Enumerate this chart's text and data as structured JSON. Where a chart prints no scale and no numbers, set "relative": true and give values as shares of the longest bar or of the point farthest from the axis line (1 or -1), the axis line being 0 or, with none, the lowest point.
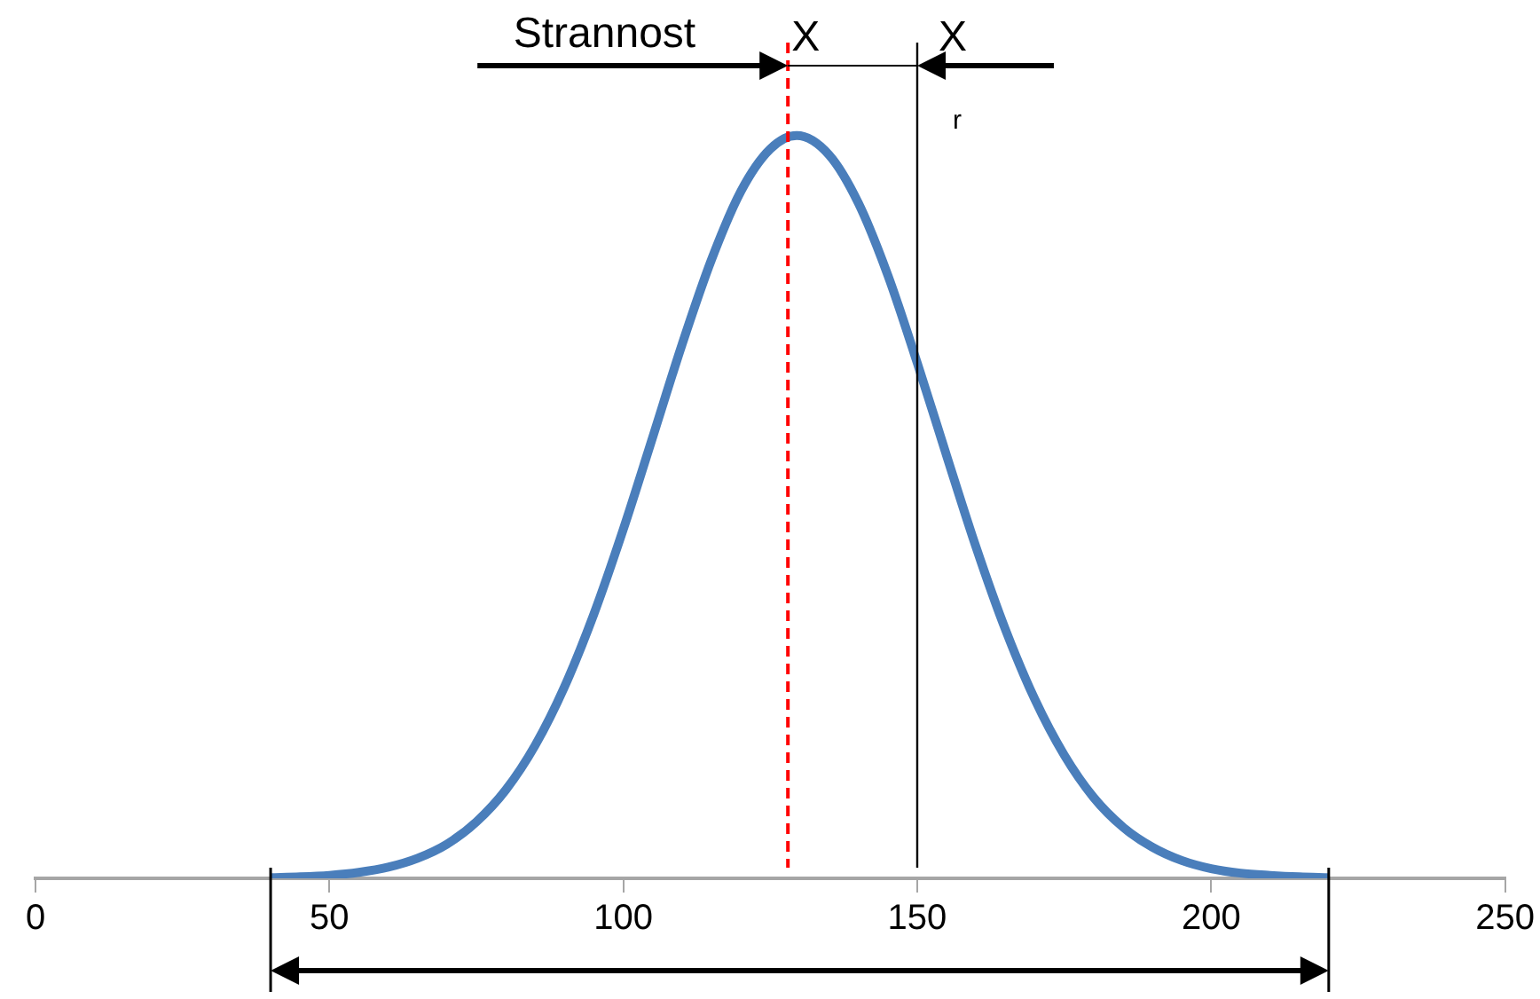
{
  "chart_data": {
    "type": "line",
    "relative": true,
    "marker": "none",
    "line_style": "solid",
    "legend": false,
    "grid": false,
    "x": [
      40,
      45,
      50,
      55,
      60,
      65,
      70,
      75,
      80,
      85,
      90,
      95,
      100,
      105,
      110,
      115,
      120,
      125,
      129.5,
      135,
      140,
      145,
      150,
      155,
      160,
      165,
      170,
      175,
      180,
      185,
      190,
      195,
      200,
      205,
      210,
      215,
      220
    ],
    "series": [
      {
        "color": "#4a7ebb",
        "values": [
          0.001,
          0.002,
          0.004,
          0.008,
          0.015,
          0.027,
          0.046,
          0.076,
          0.119,
          0.179,
          0.258,
          0.356,
          0.47,
          0.594,
          0.719,
          0.833,
          0.925,
          0.982,
          1,
          0.974,
          0.909,
          0.812,
          0.694,
          0.569,
          0.446,
          0.335,
          0.241,
          0.166,
          0.109,
          0.069,
          0.042,
          0.024,
          0.013,
          0.007,
          0.004,
          0.002,
          0.001
        ]
      }
    ],
    "xlim": [
      0,
      250
    ],
    "xticks": [
      0,
      50,
      100,
      150,
      200,
      250
    ],
    "ref_lines": [
      {
        "axis": "x",
        "value": 128,
        "label": "X",
        "color": "#ff0000",
        "line_style": "dashed"
      },
      {
        "axis": "x",
        "value": 150,
        "label": "X",
        "color": "#000000",
        "line_style": "solid"
      }
    ],
    "annotations": [
      "Strannost",
      "r"
    ]
  }
}
